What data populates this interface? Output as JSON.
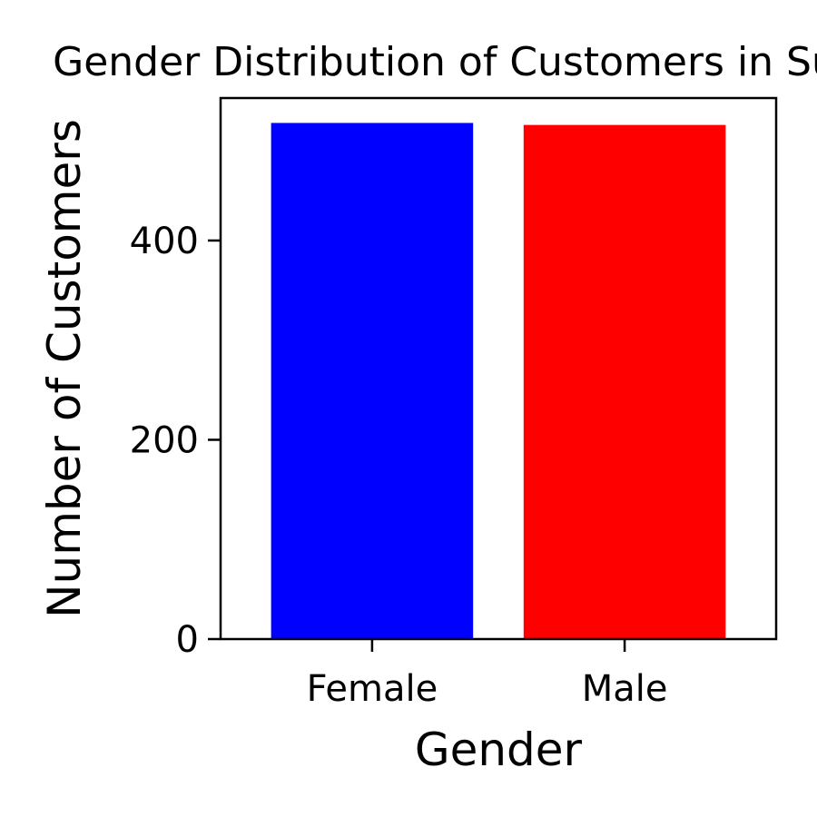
{
  "chart_data": {
    "type": "bar",
    "title": "Gender Distribution of Customers in Su",
    "xlabel": "Gender",
    "ylabel": "Number of Customers",
    "categories": [
      "Female",
      "Male"
    ],
    "values": [
      518,
      516
    ],
    "colors": [
      "#0000ff",
      "#ff0000"
    ],
    "yticks": [
      0,
      200,
      400
    ],
    "ylim": [
      0,
      543
    ],
    "grid": false,
    "legend": "none"
  }
}
